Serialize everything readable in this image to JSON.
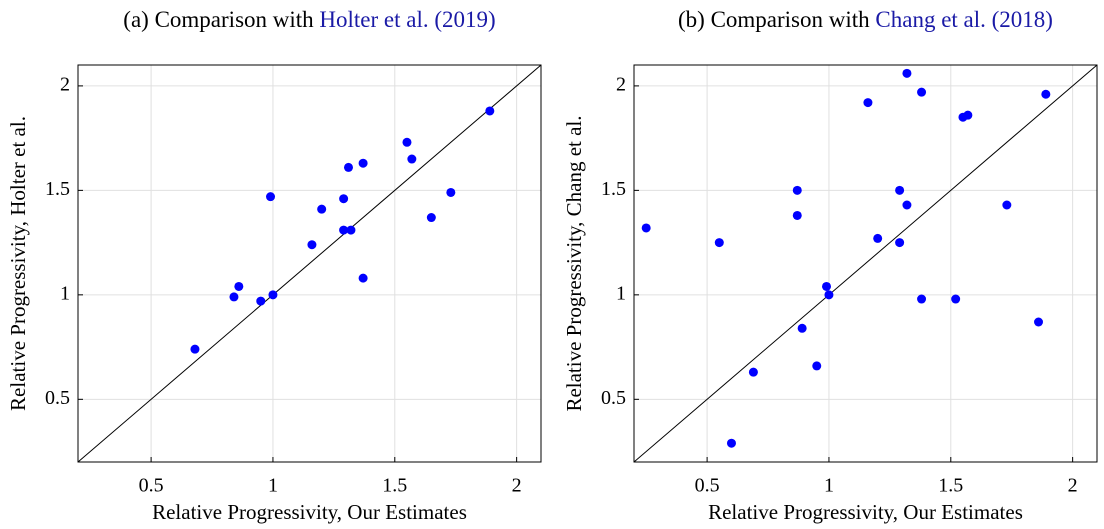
{
  "chart_data": [
    {
      "type": "scatter",
      "title": "(a) Comparison with",
      "citation": "Holter et al. (2019)",
      "xlabel": "Relative Progressivity, Our Estimates",
      "ylabel": "Relative Progressivity, Holter et al.",
      "x": [
        0.68,
        0.84,
        0.86,
        0.95,
        1.0,
        0.99,
        1.16,
        1.2,
        1.29,
        1.29,
        1.32,
        1.31,
        1.37,
        1.37,
        1.55,
        1.57,
        1.65,
        1.73,
        1.89
      ],
      "y": [
        0.74,
        0.99,
        1.04,
        0.97,
        1.0,
        1.47,
        1.24,
        1.41,
        1.46,
        1.31,
        1.31,
        1.61,
        1.63,
        1.08,
        1.73,
        1.65,
        1.37,
        1.49,
        1.88
      ],
      "color": "#0000ff",
      "xlim": [
        0.2,
        2.1
      ],
      "ylim": [
        0.2,
        2.1
      ],
      "xticks": [
        0.5,
        1,
        1.5,
        2
      ],
      "yticks": [
        0.5,
        1,
        1.5,
        2
      ],
      "grid": true,
      "diagonal": true
    },
    {
      "type": "scatter",
      "title": "(b) Comparison with",
      "citation": "Chang et al. (2018)",
      "xlabel": "Relative Progressivity, Our Estimates",
      "ylabel": "Relative Progressivity, Chang et al.",
      "x": [
        0.25,
        0.55,
        0.6,
        0.69,
        0.87,
        0.87,
        0.89,
        0.95,
        0.99,
        1.0,
        1.16,
        1.2,
        1.29,
        1.32,
        1.29,
        1.32,
        1.38,
        1.38,
        1.52,
        1.55,
        1.57,
        1.73,
        1.86,
        1.89
      ],
      "y": [
        1.32,
        1.25,
        0.29,
        0.63,
        1.5,
        1.38,
        0.84,
        0.66,
        1.04,
        1.0,
        1.92,
        1.27,
        1.5,
        1.43,
        1.25,
        2.06,
        1.97,
        0.98,
        0.98,
        1.85,
        1.86,
        1.43,
        0.87,
        1.96
      ],
      "color": "#0000ff",
      "xlim": [
        0.2,
        2.1
      ],
      "ylim": [
        0.2,
        2.1
      ],
      "xticks": [
        0.5,
        1,
        1.5,
        2
      ],
      "yticks": [
        0.5,
        1,
        1.5,
        2
      ],
      "grid": true,
      "diagonal": true
    }
  ]
}
